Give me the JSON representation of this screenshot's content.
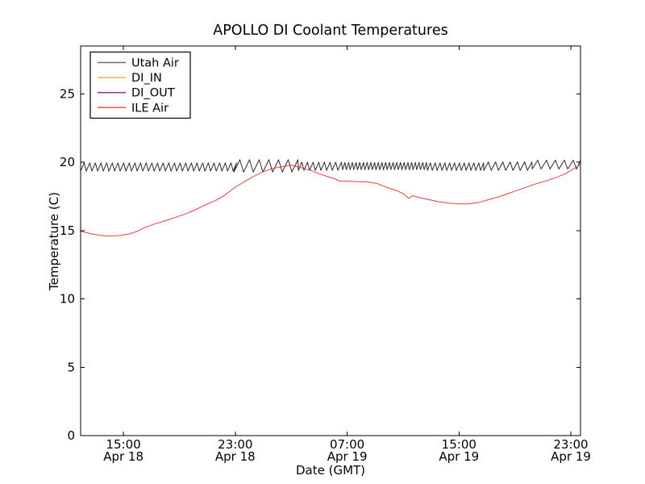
{
  "chart_data": {
    "type": "line",
    "title": "APOLLO DI Coolant Temperatures",
    "xlabel": "Date (GMT)",
    "ylabel": "Temperature (C)",
    "x_unit": "hours since Apr 18 00:00 GMT",
    "x_range": [
      11.94,
      47.69
    ],
    "y_range": [
      0,
      28.5
    ],
    "grid": false,
    "legend_position": "upper left",
    "x_ticks": [
      {
        "hour": 15,
        "time": "15:00",
        "date": "Apr 18"
      },
      {
        "hour": 23,
        "time": "23:00",
        "date": "Apr 18"
      },
      {
        "hour": 31,
        "time": "07:00",
        "date": "Apr 19"
      },
      {
        "hour": 39,
        "time": "15:00",
        "date": "Apr 19"
      },
      {
        "hour": 47,
        "time": "23:00",
        "date": "Apr 19"
      }
    ],
    "y_ticks": [
      0,
      5,
      10,
      15,
      20,
      25
    ],
    "series": [
      {
        "name": "Utah Air",
        "legend_color": "#6e6e6e",
        "line_color": "#2b2b2b",
        "pattern": "sawtooth-oscillation around ~19.7 C",
        "peak_phase": 0.62,
        "oscillation_segments": [
          {
            "start": 11.94,
            "end": 22.9,
            "period_h": 0.404,
            "trough": 19.35,
            "peak": 19.95
          },
          {
            "start": 22.9,
            "end": 27.51,
            "period_h": 0.692,
            "trough": 19.28,
            "peak": 20.18
          },
          {
            "start": 27.51,
            "end": 30.68,
            "period_h": 0.404,
            "trough": 19.4,
            "peak": 20.0
          },
          {
            "start": 30.68,
            "end": 36.74,
            "period_h": 0.265,
            "trough": 19.45,
            "peak": 19.98
          },
          {
            "start": 36.74,
            "end": 40.78,
            "period_h": 0.346,
            "trough": 19.4,
            "peak": 19.95
          },
          {
            "start": 40.78,
            "end": 44.24,
            "period_h": 0.519,
            "trough": 19.4,
            "peak": 20.02
          },
          {
            "start": 44.24,
            "end": 47.69,
            "period_h": 0.634,
            "trough": 19.5,
            "peak": 20.15
          }
        ]
      },
      {
        "name": "DI_IN",
        "legend_color": "#ffb13b",
        "line_color": "#ffb13b",
        "points": []
      },
      {
        "name": "DI_OUT",
        "legend_color": "#8d3b8d",
        "line_color": "#8d3b8d",
        "points": []
      },
      {
        "name": "ILE Air",
        "legend_color": "#f85454",
        "line_color": "#ee3b3b",
        "points": [
          [
            11.94,
            14.95
          ],
          [
            12.6,
            14.78
          ],
          [
            13.3,
            14.65
          ],
          [
            14.0,
            14.6
          ],
          [
            14.7,
            14.63
          ],
          [
            15.4,
            14.75
          ],
          [
            16.0,
            14.95
          ],
          [
            16.6,
            15.25
          ],
          [
            17.3,
            15.5
          ],
          [
            18.0,
            15.72
          ],
          [
            18.7,
            15.95
          ],
          [
            19.4,
            16.2
          ],
          [
            20.1,
            16.5
          ],
          [
            20.8,
            16.85
          ],
          [
            21.5,
            17.15
          ],
          [
            22.2,
            17.55
          ],
          [
            22.9,
            18.1
          ],
          [
            23.6,
            18.55
          ],
          [
            24.3,
            18.95
          ],
          [
            25.0,
            19.3
          ],
          [
            25.7,
            19.55
          ],
          [
            26.4,
            19.68
          ],
          [
            27.0,
            19.78
          ],
          [
            27.7,
            19.6
          ],
          [
            28.4,
            19.4
          ],
          [
            29.0,
            19.15
          ],
          [
            29.6,
            18.95
          ],
          [
            30.2,
            18.75
          ],
          [
            30.5,
            18.6
          ],
          [
            31.0,
            18.62
          ],
          [
            31.6,
            18.58
          ],
          [
            32.4,
            18.56
          ],
          [
            33.1,
            18.45
          ],
          [
            34.0,
            18.1
          ],
          [
            34.6,
            17.9
          ],
          [
            35.0,
            17.7
          ],
          [
            35.4,
            17.35
          ],
          [
            35.7,
            17.55
          ],
          [
            36.2,
            17.4
          ],
          [
            36.9,
            17.25
          ],
          [
            37.6,
            17.1
          ],
          [
            38.3,
            17.0
          ],
          [
            39.0,
            16.95
          ],
          [
            39.7,
            16.95
          ],
          [
            40.4,
            17.05
          ],
          [
            41.1,
            17.25
          ],
          [
            41.8,
            17.45
          ],
          [
            42.5,
            17.7
          ],
          [
            43.2,
            17.95
          ],
          [
            43.9,
            18.2
          ],
          [
            44.6,
            18.45
          ],
          [
            45.3,
            18.65
          ],
          [
            46.0,
            18.9
          ],
          [
            46.6,
            19.15
          ],
          [
            47.1,
            19.45
          ],
          [
            47.5,
            19.7
          ],
          [
            47.69,
            19.88
          ]
        ]
      }
    ]
  }
}
